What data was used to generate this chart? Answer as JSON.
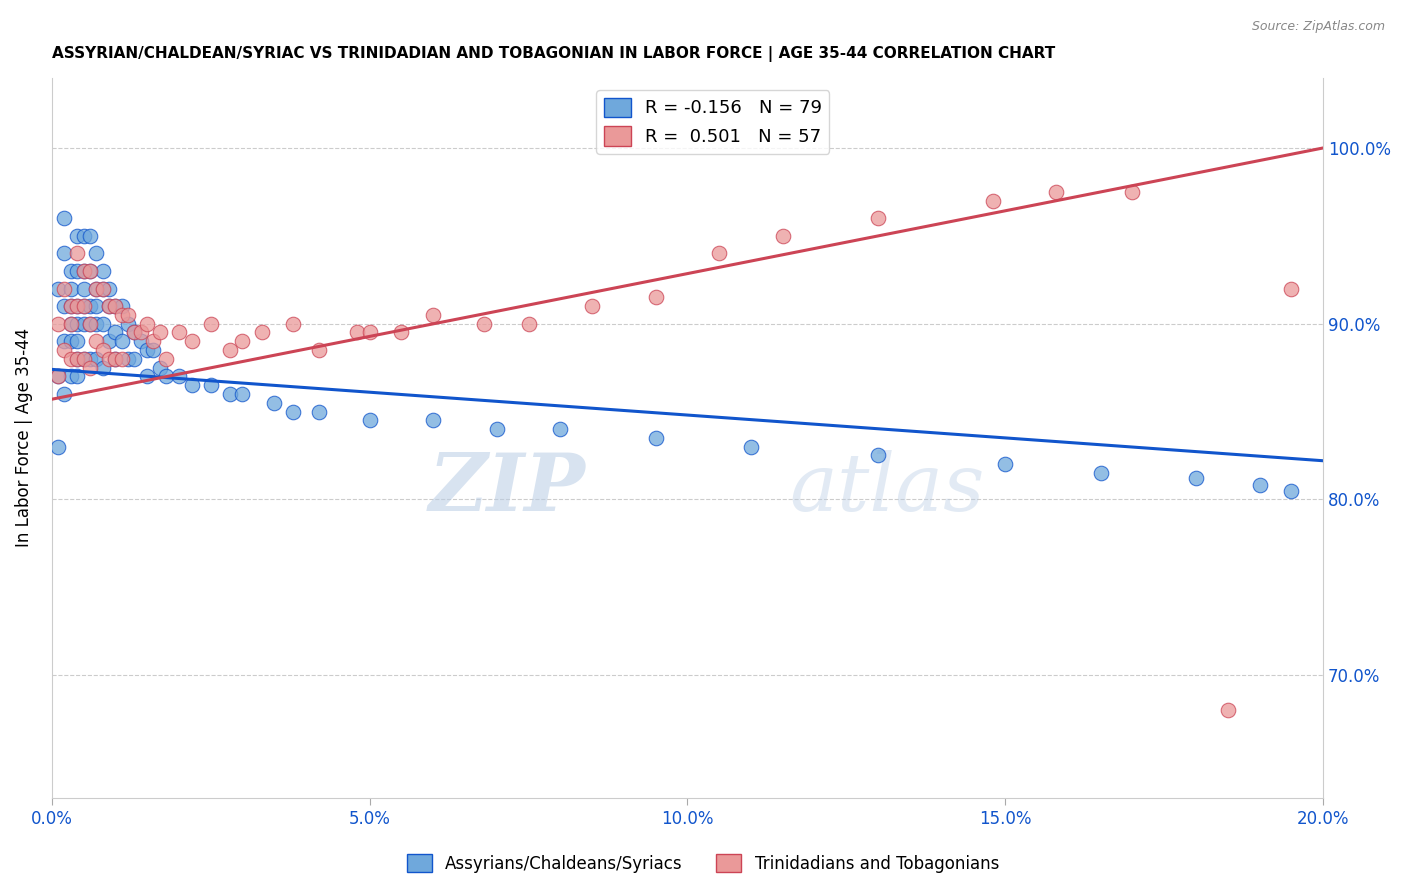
{
  "title": "ASSYRIAN/CHALDEAN/SYRIAC VS TRINIDADIAN AND TOBAGONIAN IN LABOR FORCE | AGE 35-44 CORRELATION CHART",
  "source": "Source: ZipAtlas.com",
  "xlabel": "",
  "ylabel": "In Labor Force | Age 35-44",
  "xlim": [
    0.0,
    0.2
  ],
  "ylim": [
    0.63,
    1.04
  ],
  "ytick_labels": [
    "70.0%",
    "80.0%",
    "90.0%",
    "100.0%"
  ],
  "ytick_values": [
    0.7,
    0.8,
    0.9,
    1.0
  ],
  "xtick_labels": [
    "0.0%",
    "5.0%",
    "10.0%",
    "15.0%",
    "20.0%"
  ],
  "xtick_values": [
    0.0,
    0.05,
    0.1,
    0.15,
    0.2
  ],
  "blue_R": -0.156,
  "blue_N": 79,
  "pink_R": 0.501,
  "pink_N": 57,
  "legend_label_blue": "Assyrians/Chaldeans/Syriacs",
  "legend_label_pink": "Trinidadians and Tobagonians",
  "blue_color": "#6fa8dc",
  "pink_color": "#ea9999",
  "blue_line_color": "#1155cc",
  "pink_line_color": "#cc4455",
  "watermark_zip": "ZIP",
  "watermark_atlas": "atlas",
  "blue_scatter_x": [
    0.001,
    0.001,
    0.001,
    0.002,
    0.002,
    0.002,
    0.002,
    0.002,
    0.003,
    0.003,
    0.003,
    0.003,
    0.003,
    0.003,
    0.004,
    0.004,
    0.004,
    0.004,
    0.004,
    0.004,
    0.004,
    0.005,
    0.005,
    0.005,
    0.005,
    0.005,
    0.005,
    0.006,
    0.006,
    0.006,
    0.006,
    0.006,
    0.007,
    0.007,
    0.007,
    0.007,
    0.007,
    0.008,
    0.008,
    0.008,
    0.008,
    0.009,
    0.009,
    0.009,
    0.01,
    0.01,
    0.01,
    0.011,
    0.011,
    0.012,
    0.012,
    0.013,
    0.013,
    0.014,
    0.015,
    0.015,
    0.016,
    0.017,
    0.018,
    0.02,
    0.022,
    0.025,
    0.028,
    0.03,
    0.035,
    0.038,
    0.042,
    0.05,
    0.06,
    0.07,
    0.08,
    0.095,
    0.11,
    0.13,
    0.15,
    0.165,
    0.18,
    0.19,
    0.195
  ],
  "blue_scatter_y": [
    0.92,
    0.87,
    0.83,
    0.96,
    0.94,
    0.91,
    0.89,
    0.86,
    0.93,
    0.92,
    0.91,
    0.9,
    0.89,
    0.87,
    0.95,
    0.93,
    0.91,
    0.9,
    0.89,
    0.88,
    0.87,
    0.95,
    0.93,
    0.92,
    0.91,
    0.9,
    0.88,
    0.95,
    0.93,
    0.91,
    0.9,
    0.88,
    0.94,
    0.92,
    0.91,
    0.9,
    0.88,
    0.93,
    0.92,
    0.9,
    0.875,
    0.92,
    0.91,
    0.89,
    0.91,
    0.895,
    0.88,
    0.91,
    0.89,
    0.9,
    0.88,
    0.895,
    0.88,
    0.89,
    0.885,
    0.87,
    0.885,
    0.875,
    0.87,
    0.87,
    0.865,
    0.865,
    0.86,
    0.86,
    0.855,
    0.85,
    0.85,
    0.845,
    0.845,
    0.84,
    0.84,
    0.835,
    0.83,
    0.825,
    0.82,
    0.815,
    0.812,
    0.808,
    0.805
  ],
  "pink_scatter_x": [
    0.001,
    0.001,
    0.002,
    0.002,
    0.003,
    0.003,
    0.003,
    0.004,
    0.004,
    0.004,
    0.005,
    0.005,
    0.005,
    0.006,
    0.006,
    0.006,
    0.007,
    0.007,
    0.008,
    0.008,
    0.009,
    0.009,
    0.01,
    0.01,
    0.011,
    0.011,
    0.012,
    0.013,
    0.014,
    0.015,
    0.016,
    0.017,
    0.018,
    0.02,
    0.022,
    0.025,
    0.028,
    0.03,
    0.033,
    0.038,
    0.042,
    0.048,
    0.05,
    0.055,
    0.06,
    0.068,
    0.075,
    0.085,
    0.095,
    0.105,
    0.115,
    0.13,
    0.148,
    0.158,
    0.17,
    0.185,
    0.195
  ],
  "pink_scatter_y": [
    0.9,
    0.87,
    0.92,
    0.885,
    0.91,
    0.9,
    0.88,
    0.94,
    0.91,
    0.88,
    0.93,
    0.91,
    0.88,
    0.93,
    0.9,
    0.875,
    0.92,
    0.89,
    0.92,
    0.885,
    0.91,
    0.88,
    0.91,
    0.88,
    0.905,
    0.88,
    0.905,
    0.895,
    0.895,
    0.9,
    0.89,
    0.895,
    0.88,
    0.895,
    0.89,
    0.9,
    0.885,
    0.89,
    0.895,
    0.9,
    0.885,
    0.895,
    0.895,
    0.895,
    0.905,
    0.9,
    0.9,
    0.91,
    0.915,
    0.94,
    0.95,
    0.96,
    0.97,
    0.975,
    0.975,
    0.68,
    0.92
  ],
  "blue_line_y0": 0.874,
  "blue_line_y1": 0.822,
  "pink_line_y0": 0.857,
  "pink_line_y1": 1.0
}
